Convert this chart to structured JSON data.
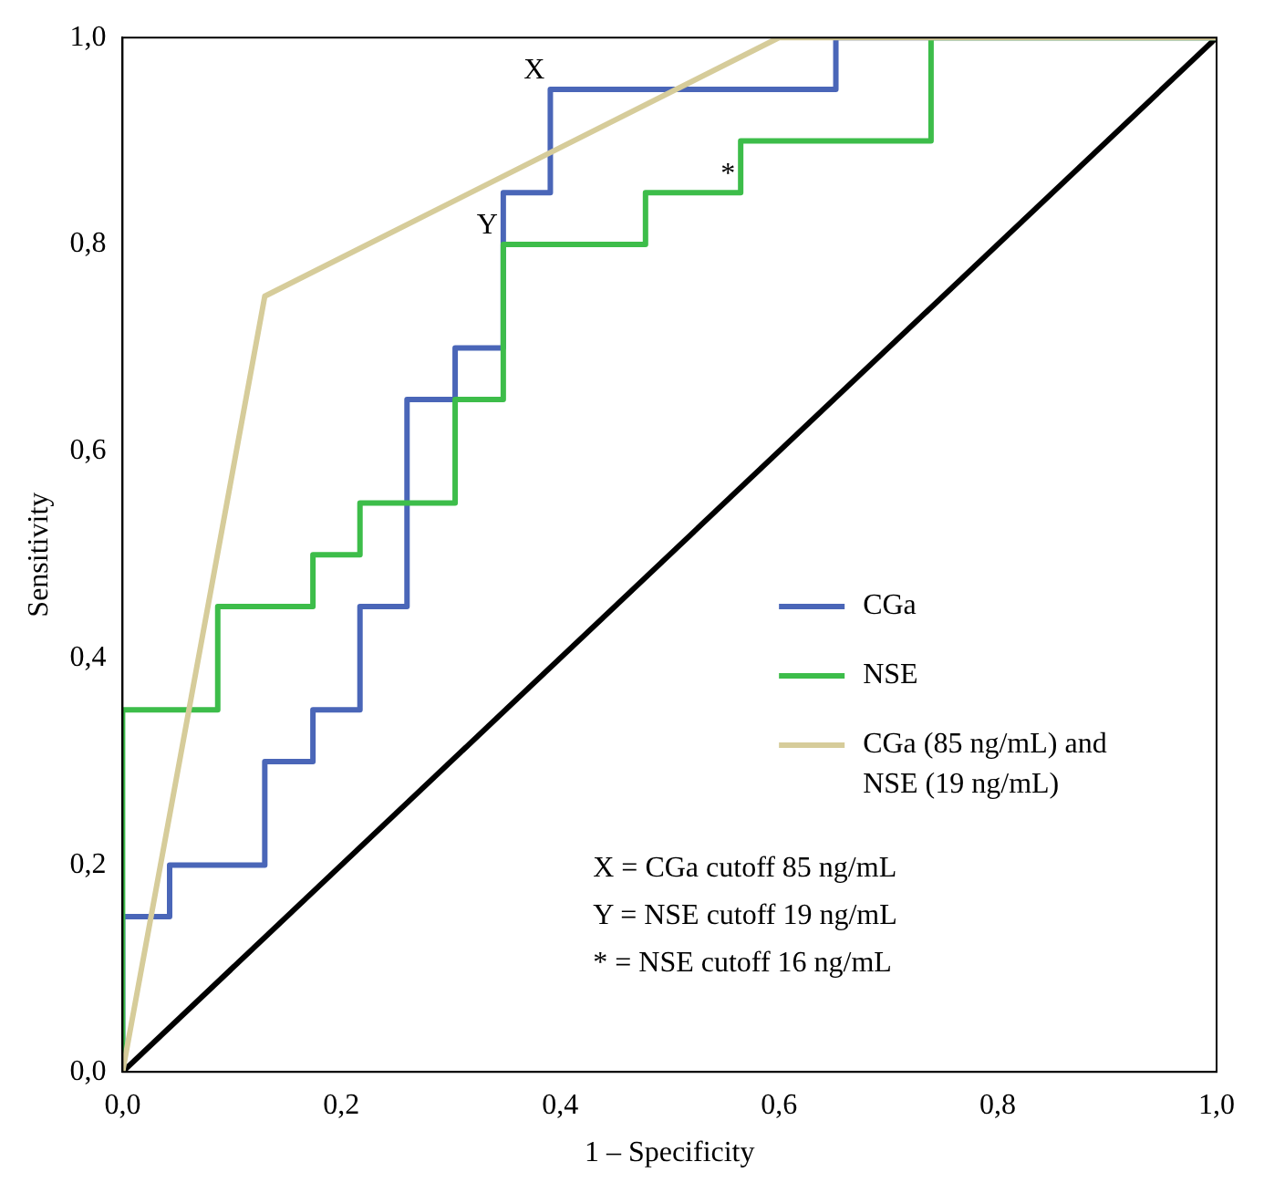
{
  "chart_data": {
    "type": "line",
    "xlabel": "1 – Specificity",
    "ylabel": "Sensitivity",
    "xlim": [
      0,
      1
    ],
    "ylim": [
      0,
      1
    ],
    "xticks": [
      {
        "value": 0,
        "label": "0,0"
      },
      {
        "value": 0.2,
        "label": "0,2"
      },
      {
        "value": 0.4,
        "label": "0,4"
      },
      {
        "value": 0.6,
        "label": "0,6"
      },
      {
        "value": 0.8,
        "label": "0,8"
      },
      {
        "value": 1,
        "label": "1,0"
      }
    ],
    "yticks": [
      {
        "value": 0,
        "label": "0,0"
      },
      {
        "value": 0.2,
        "label": "0,2"
      },
      {
        "value": 0.4,
        "label": "0,4"
      },
      {
        "value": 0.6,
        "label": "0,6"
      },
      {
        "value": 0.8,
        "label": "0,8"
      },
      {
        "value": 1,
        "label": "1,0"
      }
    ],
    "grid": false,
    "legend": "right",
    "marker": "none",
    "line_style": "solid",
    "series": [
      {
        "name": "CGa",
        "color": "#4a66b8",
        "x": [
          0,
          0,
          0.043,
          0.043,
          0.13,
          0.13,
          0.174,
          0.174,
          0.217,
          0.217,
          0.26,
          0.26,
          0.304,
          0.304,
          0.348,
          0.348,
          0.391,
          0.391,
          0.652,
          0.652,
          1
        ],
        "values": [
          0,
          0.15,
          0.15,
          0.2,
          0.2,
          0.3,
          0.3,
          0.35,
          0.35,
          0.45,
          0.45,
          0.65,
          0.65,
          0.7,
          0.7,
          0.85,
          0.85,
          0.95,
          0.95,
          1,
          1
        ]
      },
      {
        "name": "NSE",
        "color": "#3dbd4a",
        "x": [
          0,
          0,
          0.087,
          0.087,
          0.174,
          0.174,
          0.217,
          0.217,
          0.304,
          0.304,
          0.348,
          0.348,
          0.478,
          0.478,
          0.565,
          0.565,
          0.739,
          0.739,
          1
        ],
        "values": [
          0,
          0.35,
          0.35,
          0.45,
          0.45,
          0.5,
          0.5,
          0.55,
          0.55,
          0.65,
          0.65,
          0.8,
          0.8,
          0.85,
          0.85,
          0.9,
          0.9,
          1,
          1
        ]
      },
      {
        "name": "CGa (85 ng/mL) and NSE (19 ng/mL)",
        "color": "#d6cc9a",
        "x": [
          0,
          0.13,
          0.6,
          1
        ],
        "values": [
          0,
          0.75,
          1,
          1
        ]
      },
      {
        "color": "#000000",
        "x": [
          0,
          1
        ],
        "values": [
          0,
          1
        ]
      }
    ],
    "annotations": [
      {
        "text": "X",
        "x": 0.391,
        "y": 0.95
      },
      {
        "text": "Y",
        "x": 0.348,
        "y": 0.8
      },
      {
        "text": "*",
        "x": 0.565,
        "y": 0.85
      },
      "X = CGa cutoff 85 ng/mL",
      "Y = NSE cutoff 19 ng/mL",
      "* = NSE cutoff 16 ng/mL"
    ]
  }
}
